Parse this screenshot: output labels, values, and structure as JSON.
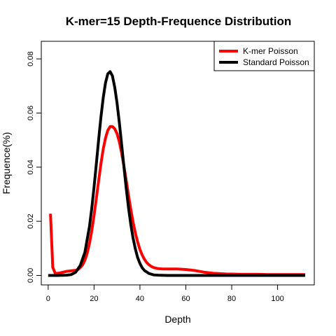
{
  "chart_data": {
    "type": "line",
    "title": "K-mer=15 Depth-Frequence Distribution",
    "xlabel": "Depth",
    "ylabel": "Frequence(%)",
    "xlim": [
      -3,
      116
    ],
    "ylim": [
      -0.0035,
      0.0865
    ],
    "xticks": [
      0,
      20,
      40,
      60,
      80,
      100
    ],
    "xtick_labels": [
      "0",
      "20",
      "40",
      "60",
      "80",
      "100"
    ],
    "yticks": [
      0.0,
      0.02,
      0.04,
      0.06,
      0.08
    ],
    "ytick_labels": [
      "0.00",
      "0.02",
      "0.04",
      "0.06",
      "0.08"
    ],
    "grid": false,
    "legend_position": "top-right",
    "series": [
      {
        "name": "K-mer Poisson",
        "color": "#ff0000",
        "x": [
          1,
          2,
          3,
          4,
          5,
          6,
          7,
          8,
          9,
          10,
          11,
          12,
          13,
          14,
          15,
          16,
          17,
          18,
          19,
          20,
          21,
          22,
          23,
          24,
          25,
          26,
          27,
          28,
          29,
          30,
          31,
          32,
          33,
          34,
          35,
          36,
          37,
          38,
          39,
          40,
          41,
          42,
          43,
          44,
          45,
          46,
          47,
          48,
          50,
          52,
          54,
          56,
          58,
          60,
          62,
          64,
          66,
          68,
          70,
          72,
          74,
          76,
          78,
          80,
          84,
          88,
          92,
          96,
          100,
          104,
          108,
          112
        ],
        "y": [
          0.0228,
          0.003,
          0.0009,
          0.0008,
          0.0009,
          0.0011,
          0.0013,
          0.0015,
          0.0016,
          0.0017,
          0.0018,
          0.0019,
          0.0022,
          0.0029,
          0.0039,
          0.0056,
          0.0082,
          0.0118,
          0.0165,
          0.0222,
          0.0285,
          0.035,
          0.0413,
          0.0467,
          0.0508,
          0.0536,
          0.055,
          0.055,
          0.0542,
          0.0524,
          0.0494,
          0.0453,
          0.0405,
          0.0352,
          0.0297,
          0.0245,
          0.0197,
          0.0157,
          0.0123,
          0.0096,
          0.0075,
          0.0059,
          0.0047,
          0.0039,
          0.0033,
          0.0029,
          0.0027,
          0.0025,
          0.0024,
          0.0024,
          0.0024,
          0.0024,
          0.0023,
          0.0022,
          0.002,
          0.0018,
          0.0015,
          0.0012,
          0.001,
          0.0008,
          0.0007,
          0.0006,
          0.0005,
          0.0005,
          0.0004,
          0.0004,
          0.0004,
          0.0003,
          0.0003,
          0.0003,
          0.0003,
          0.0003
        ]
      },
      {
        "name": "Standard Poisson",
        "color": "#000000",
        "x": [
          0,
          4,
          8,
          10,
          12,
          14,
          16,
          18,
          19,
          20,
          21,
          22,
          23,
          24,
          25,
          26,
          27,
          28,
          29,
          30,
          31,
          32,
          33,
          34,
          35,
          36,
          37,
          38,
          39,
          40,
          41,
          42,
          44,
          46,
          48,
          52,
          60,
          70,
          80,
          90,
          100,
          112
        ],
        "y": [
          0.0,
          0.0,
          0.0001,
          0.0003,
          0.0012,
          0.0037,
          0.0085,
          0.0181,
          0.0248,
          0.0327,
          0.0413,
          0.0502,
          0.0585,
          0.0657,
          0.0712,
          0.0745,
          0.0753,
          0.0737,
          0.0696,
          0.0638,
          0.0566,
          0.0485,
          0.0403,
          0.0323,
          0.0251,
          0.0189,
          0.0138,
          0.0098,
          0.0066,
          0.0044,
          0.0028,
          0.0018,
          0.0007,
          0.0002,
          0.0001,
          0.0,
          0.0,
          0.0,
          0.0,
          0.0,
          0.0,
          0.0
        ]
      }
    ]
  }
}
